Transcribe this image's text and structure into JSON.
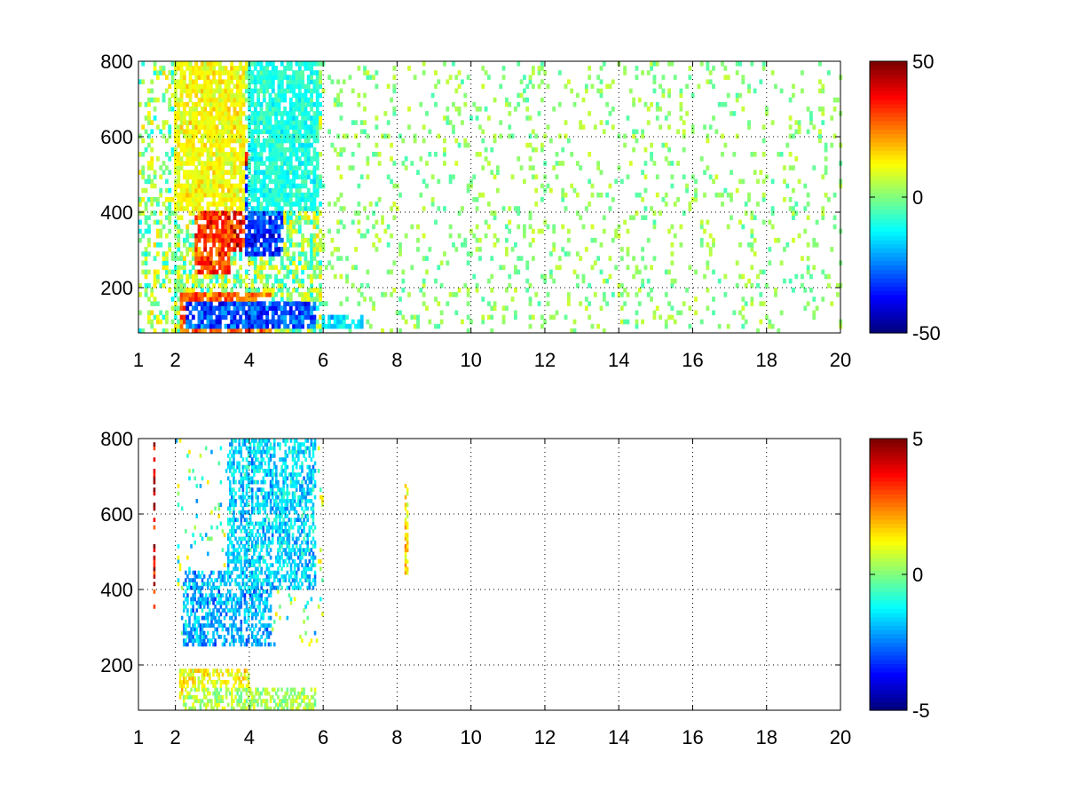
{
  "chart_data": [
    {
      "type": "heatmap",
      "title": "",
      "xlabel": "",
      "ylabel": "",
      "xlim": [
        1,
        20
      ],
      "ylim": [
        80,
        800
      ],
      "x_ticks": [
        1,
        2,
        4,
        6,
        8,
        10,
        12,
        14,
        16,
        18,
        20
      ],
      "y_ticks": [
        200,
        400,
        600,
        800
      ],
      "x_tick_labels": [
        "1",
        "2",
        "4",
        "6",
        "8",
        "10",
        "12",
        "14",
        "16",
        "18",
        "20"
      ],
      "y_tick_labels": [
        "200",
        "400",
        "600",
        "800"
      ],
      "grid": true,
      "colormap": "jet",
      "colorbar": {
        "min": -50,
        "max": 50,
        "ticks": [
          -50,
          0,
          50
        ],
        "tick_labels": [
          "-50",
          "0",
          "50"
        ]
      },
      "cell_size": [
        0.08,
        12
      ],
      "dense_region_x": [
        1,
        6
      ],
      "sparse_region_x": [
        6,
        20
      ],
      "features": [
        {
          "x": [
            2.5,
            3.5
          ],
          "y": [
            240,
            400
          ],
          "value": 40
        },
        {
          "x": [
            3.5,
            4.2
          ],
          "y": [
            300,
            560
          ],
          "value": 45
        },
        {
          "x": [
            3.9,
            4.9
          ],
          "y": [
            290,
            520
          ],
          "value": -40
        },
        {
          "x": [
            2.1,
            4.6
          ],
          "y": [
            80,
            190
          ],
          "value": 35
        },
        {
          "x": [
            2.3,
            5.8
          ],
          "y": [
            90,
            160
          ],
          "value": -38
        },
        {
          "x": [
            2.0,
            3.9
          ],
          "y": [
            400,
            800
          ],
          "value": 15
        },
        {
          "x": [
            4.0,
            5.9
          ],
          "y": [
            400,
            800
          ],
          "value": -12
        },
        {
          "x": [
            6.0,
            7.1
          ],
          "y": [
            90,
            130
          ],
          "value": -20
        }
      ]
    },
    {
      "type": "heatmap",
      "title": "",
      "xlabel": "",
      "ylabel": "",
      "xlim": [
        1,
        20
      ],
      "ylim": [
        80,
        800
      ],
      "x_ticks": [
        1,
        2,
        4,
        6,
        8,
        10,
        12,
        14,
        16,
        18,
        20
      ],
      "y_ticks": [
        200,
        400,
        600,
        800
      ],
      "x_tick_labels": [
        "1",
        "2",
        "4",
        "6",
        "8",
        "10",
        "12",
        "14",
        "16",
        "18",
        "20"
      ],
      "y_tick_labels": [
        "200",
        "400",
        "600",
        "800"
      ],
      "grid": true,
      "colormap": "jet",
      "colorbar": {
        "min": -5,
        "max": 5,
        "ticks": [
          -5,
          0,
          5
        ],
        "tick_labels": [
          "-5",
          "0",
          "5"
        ]
      },
      "cell_size": [
        0.05,
        10
      ],
      "dense_region_x": [
        2,
        6
      ],
      "features": [
        {
          "x": [
            2.2,
            4.6
          ],
          "y": [
            250,
            450
          ],
          "value": -2.5
        },
        {
          "x": [
            3.4,
            5.8
          ],
          "y": [
            400,
            800
          ],
          "value": -2.0
        },
        {
          "x": [
            2.1,
            4.0
          ],
          "y": [
            100,
            190
          ],
          "value": 1.5
        },
        {
          "x": [
            2.2,
            5.8
          ],
          "y": [
            80,
            140
          ],
          "value": 0.5
        },
        {
          "x": [
            1.4,
            1.45
          ],
          "y": [
            350,
            800
          ],
          "value": 5.0
        },
        {
          "x": [
            8.2,
            8.3
          ],
          "y": [
            440,
            680
          ],
          "value": 2.0
        }
      ]
    }
  ]
}
